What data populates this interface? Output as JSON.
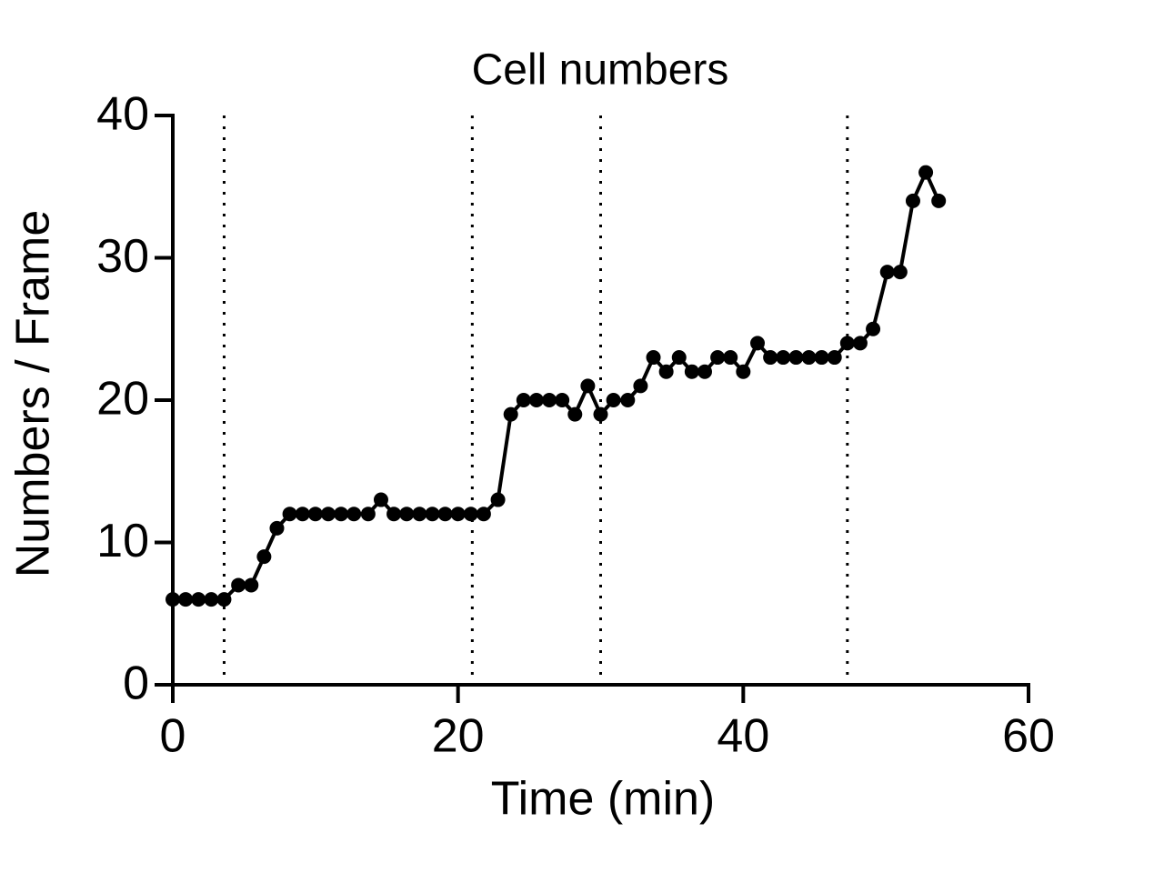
{
  "chart_data": {
    "type": "line",
    "title": "Cell numbers",
    "x_label": "Time (min)",
    "y_label": "Numbers / Frame",
    "x": [
      0,
      0.9,
      1.8,
      2.7,
      3.6,
      4.6,
      5.5,
      6.4,
      7.3,
      8.2,
      9.1,
      10.0,
      10.9,
      11.8,
      12.7,
      13.7,
      14.6,
      15.5,
      16.4,
      17.3,
      18.2,
      19.1,
      20.0,
      20.9,
      21.8,
      22.8,
      23.7,
      24.6,
      25.5,
      26.4,
      27.3,
      28.2,
      29.1,
      30.0,
      30.9,
      31.9,
      32.8,
      33.7,
      34.6,
      35.5,
      36.4,
      37.3,
      38.2,
      39.1,
      40.0,
      41.0,
      41.9,
      42.8,
      43.7,
      44.6,
      45.5,
      46.4,
      47.3,
      48.2,
      49.1,
      50.1,
      51.0,
      51.9,
      52.8,
      53.7
    ],
    "series": [
      {
        "color": "#000000",
        "values": [
          6,
          6,
          6,
          6,
          6,
          7,
          7,
          9,
          11,
          12,
          12,
          12,
          12,
          12,
          12,
          12,
          13,
          12,
          12,
          12,
          12,
          12,
          12,
          12,
          12,
          13,
          19,
          20,
          20,
          20,
          20,
          19,
          21,
          19,
          20,
          20,
          21,
          23,
          22,
          23,
          22,
          22,
          23,
          23,
          22,
          24,
          23,
          23,
          23,
          23,
          23,
          23,
          24,
          24,
          25,
          29,
          29,
          34,
          36,
          34
        ]
      }
    ],
    "vlines": [
      3.6,
      21.0,
      30.0,
      47.3
    ],
    "xlim": [
      0,
      60
    ],
    "xticks": [
      0,
      20,
      40,
      60
    ],
    "ylim": [
      0,
      40
    ],
    "yticks": [
      0,
      10,
      20,
      30,
      40
    ]
  }
}
